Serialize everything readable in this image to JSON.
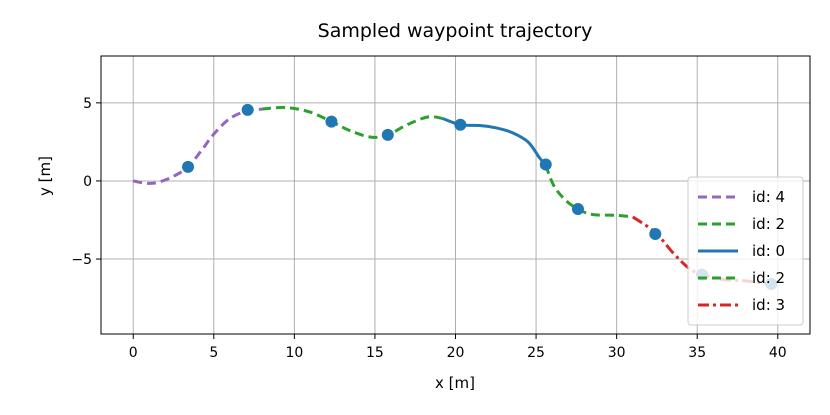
{
  "chart_data": {
    "type": "line",
    "title": "Sampled waypoint trajectory",
    "xlabel": "x [m]",
    "ylabel": "y [m]",
    "xlim": [
      -2,
      42
    ],
    "ylim": [
      -9.8,
      8
    ],
    "xticks": [
      0,
      5,
      10,
      15,
      20,
      25,
      30,
      35,
      40
    ],
    "yticks": [
      -5,
      0,
      5
    ],
    "ytick_labels": [
      "−5",
      "0",
      "5"
    ],
    "grid": true,
    "legend_position": "lower-right",
    "series": [
      {
        "name": "id: 4",
        "color": "#9467bd",
        "linestyle": "dashed",
        "points": [
          [
            0,
            0
          ],
          [
            0.8,
            -0.15
          ],
          [
            1.5,
            -0.1
          ],
          [
            2.5,
            0.3
          ],
          [
            3.4,
            0.9
          ],
          [
            4.2,
            1.9
          ],
          [
            5,
            3.0
          ],
          [
            6,
            4.0
          ],
          [
            7.1,
            4.5
          ],
          [
            8.0,
            4.6
          ]
        ]
      },
      {
        "name": "id: 2",
        "color": "#2ca02c",
        "linestyle": "dashed",
        "points": [
          [
            8.0,
            4.6
          ],
          [
            9.5,
            4.7
          ],
          [
            11,
            4.4
          ],
          [
            12.3,
            3.8
          ],
          [
            13.5,
            3.2
          ],
          [
            14.8,
            2.8
          ],
          [
            15.8,
            2.95
          ],
          [
            17,
            3.6
          ],
          [
            18.3,
            4.1
          ],
          [
            19.2,
            4.0
          ]
        ]
      },
      {
        "name": "id: 0",
        "color": "#1f77b4",
        "linestyle": "solid",
        "points": [
          [
            19.2,
            4.0
          ],
          [
            20.3,
            3.6
          ],
          [
            21.5,
            3.55
          ],
          [
            22.5,
            3.4
          ],
          [
            23.5,
            3.1
          ],
          [
            24.5,
            2.5
          ],
          [
            25.2,
            1.5
          ],
          [
            25.6,
            1.0
          ]
        ]
      },
      {
        "name": "id: 2",
        "color": "#2ca02c",
        "linestyle": "dashed",
        "points": [
          [
            25.6,
            1.0
          ],
          [
            26.1,
            -0.3
          ],
          [
            26.8,
            -1.2
          ],
          [
            27.6,
            -1.8
          ],
          [
            28.5,
            -2.15
          ],
          [
            30,
            -2.2
          ],
          [
            31,
            -2.3
          ]
        ]
      },
      {
        "name": "id: 3",
        "color": "#d62728",
        "linestyle": "dashdot",
        "points": [
          [
            31,
            -2.3
          ],
          [
            32.4,
            -3.3
          ],
          [
            33.5,
            -4.6
          ],
          [
            34.5,
            -5.6
          ],
          [
            35.3,
            -6.0
          ],
          [
            36.5,
            -6.3
          ],
          [
            38,
            -6.4
          ],
          [
            39.6,
            -6.6
          ]
        ]
      }
    ],
    "waypoints": [
      [
        3.4,
        0.9
      ],
      [
        7.1,
        4.55
      ],
      [
        12.3,
        3.8
      ],
      [
        15.8,
        2.95
      ],
      [
        20.3,
        3.6
      ],
      [
        25.6,
        1.05
      ],
      [
        27.6,
        -1.8
      ],
      [
        32.4,
        -3.4
      ],
      [
        35.3,
        -6.0
      ],
      [
        39.6,
        -6.6
      ]
    ],
    "waypoint_color": "#1f77b4"
  }
}
